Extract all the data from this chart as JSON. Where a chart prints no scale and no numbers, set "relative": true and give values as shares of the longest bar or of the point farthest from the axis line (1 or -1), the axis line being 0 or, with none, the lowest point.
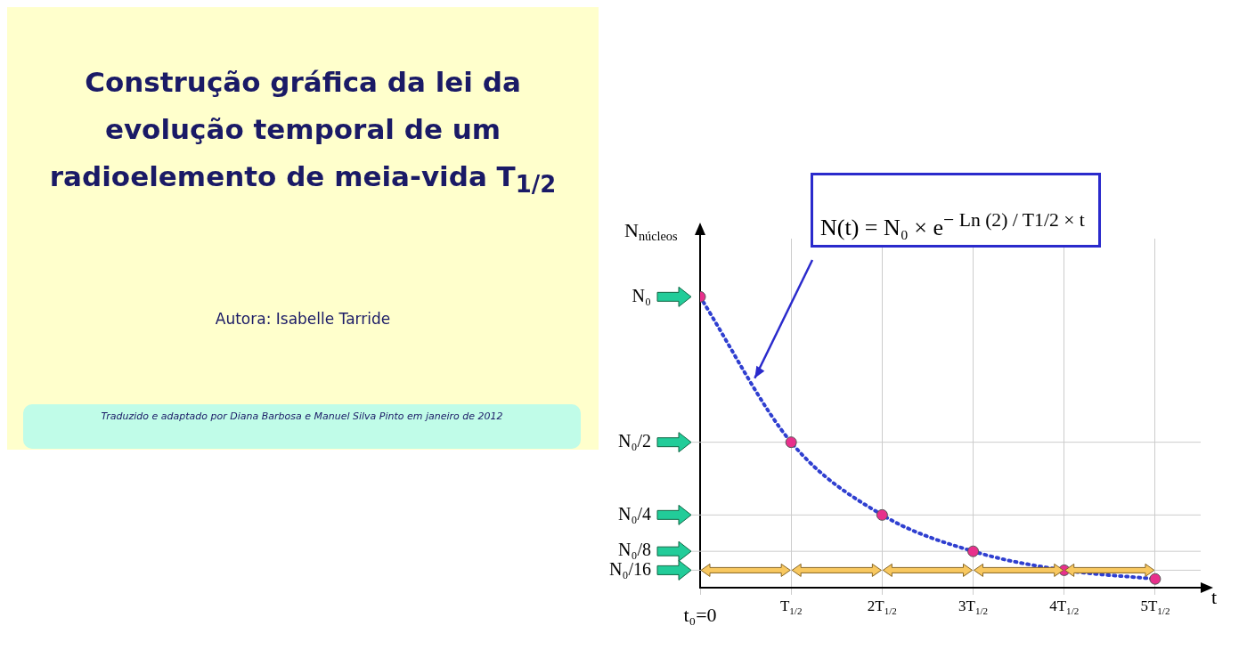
{
  "chart_data": {
    "type": "line",
    "title": "Construção gráfica da lei da evolução temporal de um radioelemento de meia-vida T$_{1/2}$",
    "xlabel": "t",
    "ylabel": "N$_{núcleos}$",
    "annotations": [
      "Autora: Isabelle Tarride",
      "Traduzido e adaptado por Diana Barbosa e Manuel Silva Pinto em janeiro de 2012",
      "N(t) = N₀ × e$^{− Ln (2) / T1/2 × t}$",
      "N₀"
    ],
    "categories": [
      "t₀=0",
      "T$_{1/2}$",
      "2T$_{1/2}$",
      "3T$_{1/2}$",
      "4T$_{1/2}$",
      "5T$_{1/2}$"
    ],
    "relative": true,
    "series": [
      {
        "color": "#2f3fd0",
        "line_style": "dotted",
        "marker": "none",
        "values": [
          1,
          0.5,
          0.25,
          0.125,
          0.06,
          0.03
        ]
      },
      {
        "type": "scatter",
        "color": "#e8308c",
        "marker": "circle",
        "values": [
          1,
          0.5,
          0.25,
          0.125,
          0.06,
          0.03
        ]
      }
    ],
    "ref_lines": [
      {
        "axis": "x",
        "value": "t₀=0",
        "color": "#000000"
      },
      {
        "axis": "y",
        "value": 0.5,
        "label": "N₀/2",
        "color": "#cccccc"
      },
      {
        "axis": "y",
        "value": 0.25,
        "label": "N₀/4",
        "color": "#cccccc"
      },
      {
        "axis": "y",
        "value": 0.125,
        "label": "N₀/8",
        "color": "#cccccc"
      },
      {
        "axis": "y",
        "value": 0.06,
        "label": "N₀/16",
        "color": "#cccccc"
      }
    ],
    "grid": "x",
    "legend": false
  }
}
